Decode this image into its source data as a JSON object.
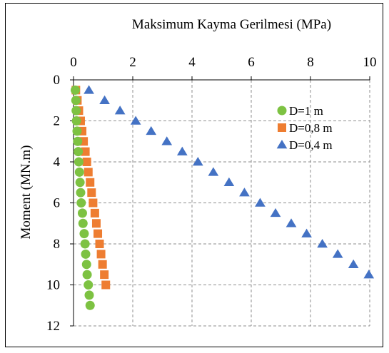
{
  "chart_data": {
    "type": "scatter",
    "title": "",
    "xlabel": "Maksimum Kayma Gerilmesi (MPa)",
    "ylabel": "Moment (MN.m)",
    "x_axis_position": "top",
    "y_axis_inverted": true,
    "xlim": [
      0,
      10
    ],
    "ylim": [
      0,
      12
    ],
    "x_ticks": [
      "0",
      "2",
      "4",
      "6",
      "8",
      "10"
    ],
    "y_ticks": [
      "0",
      "2",
      "4",
      "6",
      "8",
      "10",
      "12"
    ],
    "grid": "vertical dashed and horizontal dashed",
    "legend_position": "right-upper",
    "series": [
      {
        "name": "D=1 m",
        "marker": "circle",
        "color": "#7dc242",
        "x": [
          0.06,
          0.08,
          0.09,
          0.1,
          0.12,
          0.14,
          0.16,
          0.18,
          0.2,
          0.22,
          0.24,
          0.26,
          0.3,
          0.32,
          0.36,
          0.39,
          0.41,
          0.44,
          0.46,
          0.5,
          0.53,
          0.56
        ],
        "y": [
          0.5,
          1.0,
          1.5,
          2.0,
          2.5,
          3.0,
          3.5,
          4.0,
          4.5,
          5.0,
          5.5,
          6.0,
          6.5,
          7.0,
          7.5,
          8.0,
          8.5,
          9.0,
          9.5,
          10.0,
          10.5,
          11.0
        ]
      },
      {
        "name": "D=0,8 m",
        "marker": "square",
        "color": "#ee7d31",
        "x": [
          0.08,
          0.13,
          0.18,
          0.24,
          0.29,
          0.34,
          0.4,
          0.45,
          0.5,
          0.56,
          0.61,
          0.66,
          0.72,
          0.77,
          0.82,
          0.88,
          0.93,
          0.98,
          1.04,
          1.09
        ],
        "y": [
          0.5,
          1.0,
          1.5,
          2.0,
          2.5,
          3.0,
          3.5,
          4.0,
          4.5,
          5.0,
          5.5,
          6.0,
          6.5,
          7.0,
          7.5,
          8.0,
          8.5,
          9.0,
          9.5,
          10.0
        ]
      },
      {
        "name": "D=0,4 m",
        "marker": "triangle",
        "color": "#4472c4",
        "x": [
          0.52,
          1.05,
          1.57,
          2.1,
          2.62,
          3.15,
          3.67,
          4.2,
          4.72,
          5.25,
          5.77,
          6.3,
          6.82,
          7.35,
          7.87,
          8.4,
          8.92,
          9.45,
          9.97
        ],
        "y": [
          0.5,
          1.0,
          1.5,
          2.0,
          2.5,
          3.0,
          3.5,
          4.0,
          4.5,
          5.0,
          5.5,
          6.0,
          6.5,
          7.0,
          7.5,
          8.0,
          8.5,
          9.0,
          9.5
        ]
      }
    ]
  }
}
